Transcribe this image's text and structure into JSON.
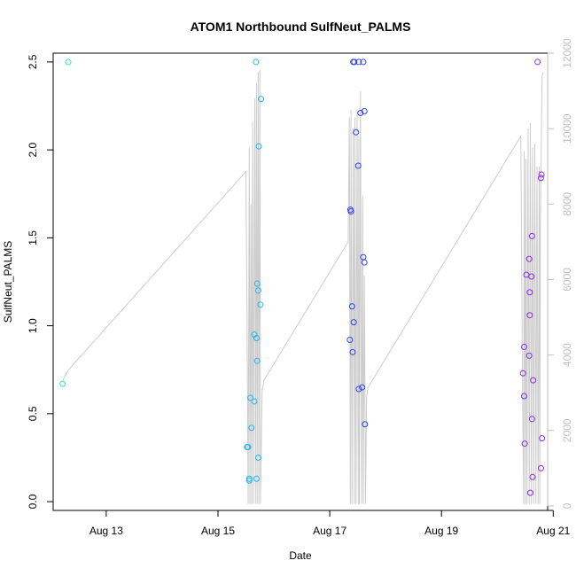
{
  "chart_data": {
    "type": "scatter",
    "title": "ATOM1 Northbound SulfNeut_PALMS",
    "xlabel": "Date",
    "ylabel": "SulfNeut_PALMS",
    "x_unit": "days (August 2016, day-of-month)",
    "xlim": [
      12.05,
      20.9
    ],
    "ylim": [
      -0.05,
      2.55
    ],
    "y2lim": [
      -120,
      12000
    ],
    "x_ticks": [
      {
        "value": 13,
        "label": "Aug 13"
      },
      {
        "value": 15,
        "label": "Aug 15"
      },
      {
        "value": 17,
        "label": "Aug 17"
      },
      {
        "value": 19,
        "label": "Aug 19"
      },
      {
        "value": 21,
        "label": "Aug 21"
      }
    ],
    "y_ticks": [
      {
        "value": 0.0,
        "label": "0.0"
      },
      {
        "value": 0.5,
        "label": "0.5"
      },
      {
        "value": 1.0,
        "label": "1.0"
      },
      {
        "value": 1.5,
        "label": "1.5"
      },
      {
        "value": 2.0,
        "label": "2.0"
      },
      {
        "value": 2.5,
        "label": "2.5"
      }
    ],
    "y2_ticks": [
      {
        "value": 0,
        "label": "0"
      },
      {
        "value": 2000,
        "label": "2000"
      },
      {
        "value": 4000,
        "label": "4000"
      },
      {
        "value": 6000,
        "label": "6000"
      },
      {
        "value": 8000,
        "label": "8000"
      },
      {
        "value": 10000,
        "label": "10000"
      },
      {
        "value": 12000,
        "label": "12000"
      }
    ],
    "points": [
      {
        "x": 12.32,
        "y": 2.5,
        "color": "#2ee8b8"
      },
      {
        "x": 12.22,
        "y": 0.67,
        "color": "#2ee8b8"
      },
      {
        "x": 15.68,
        "y": 2.5,
        "color": "#1fb8f0"
      },
      {
        "x": 15.77,
        "y": 2.29,
        "color": "#1fb8f0"
      },
      {
        "x": 15.73,
        "y": 2.02,
        "color": "#1fb8f0"
      },
      {
        "x": 15.7,
        "y": 1.24,
        "color": "#1fb8f0"
      },
      {
        "x": 15.72,
        "y": 1.2,
        "color": "#1fb8f0"
      },
      {
        "x": 15.76,
        "y": 1.12,
        "color": "#1fb8f0"
      },
      {
        "x": 15.65,
        "y": 0.95,
        "color": "#1fb8f0"
      },
      {
        "x": 15.69,
        "y": 0.93,
        "color": "#1fb8f0"
      },
      {
        "x": 15.7,
        "y": 0.8,
        "color": "#1fb8f0"
      },
      {
        "x": 15.58,
        "y": 0.59,
        "color": "#1fb8f0"
      },
      {
        "x": 15.65,
        "y": 0.57,
        "color": "#1fb8f0"
      },
      {
        "x": 15.6,
        "y": 0.42,
        "color": "#1fb8f0"
      },
      {
        "x": 15.52,
        "y": 0.31,
        "color": "#1fb8f0"
      },
      {
        "x": 15.54,
        "y": 0.31,
        "color": "#1fb8f0"
      },
      {
        "x": 15.72,
        "y": 0.25,
        "color": "#1fb8f0"
      },
      {
        "x": 15.56,
        "y": 0.13,
        "color": "#1fb8f0"
      },
      {
        "x": 15.69,
        "y": 0.13,
        "color": "#1fb8f0"
      },
      {
        "x": 15.56,
        "y": 0.12,
        "color": "#1fb8f0"
      },
      {
        "x": 17.42,
        "y": 2.5,
        "color": "#2d43f0"
      },
      {
        "x": 17.44,
        "y": 2.5,
        "color": "#2d43f0"
      },
      {
        "x": 17.52,
        "y": 2.5,
        "color": "#2d43f0"
      },
      {
        "x": 17.6,
        "y": 2.5,
        "color": "#2d43f0"
      },
      {
        "x": 17.62,
        "y": 2.22,
        "color": "#2d43f0"
      },
      {
        "x": 17.55,
        "y": 2.21,
        "color": "#2d43f0"
      },
      {
        "x": 17.47,
        "y": 2.1,
        "color": "#2d43f0"
      },
      {
        "x": 17.51,
        "y": 1.91,
        "color": "#2d43f0"
      },
      {
        "x": 17.37,
        "y": 1.66,
        "color": "#2d43f0"
      },
      {
        "x": 17.38,
        "y": 1.65,
        "color": "#2d43f0"
      },
      {
        "x": 17.6,
        "y": 1.39,
        "color": "#2d43f0"
      },
      {
        "x": 17.62,
        "y": 1.36,
        "color": "#2d43f0"
      },
      {
        "x": 17.4,
        "y": 1.11,
        "color": "#2d43f0"
      },
      {
        "x": 17.43,
        "y": 1.02,
        "color": "#2d43f0"
      },
      {
        "x": 17.36,
        "y": 0.92,
        "color": "#2d43f0"
      },
      {
        "x": 17.41,
        "y": 0.85,
        "color": "#2d43f0"
      },
      {
        "x": 17.58,
        "y": 0.65,
        "color": "#2d43f0"
      },
      {
        "x": 17.52,
        "y": 0.64,
        "color": "#2d43f0"
      },
      {
        "x": 17.63,
        "y": 0.44,
        "color": "#2d43f0"
      },
      {
        "x": 20.72,
        "y": 2.5,
        "color": "#8a2be2"
      },
      {
        "x": 20.79,
        "y": 1.86,
        "color": "#8a2be2"
      },
      {
        "x": 20.78,
        "y": 1.84,
        "color": "#8a2be2"
      },
      {
        "x": 20.62,
        "y": 1.51,
        "color": "#8a2be2"
      },
      {
        "x": 20.57,
        "y": 1.38,
        "color": "#8a2be2"
      },
      {
        "x": 20.52,
        "y": 1.29,
        "color": "#8a2be2"
      },
      {
        "x": 20.61,
        "y": 1.28,
        "color": "#8a2be2"
      },
      {
        "x": 20.58,
        "y": 1.19,
        "color": "#8a2be2"
      },
      {
        "x": 20.58,
        "y": 1.06,
        "color": "#8a2be2"
      },
      {
        "x": 20.48,
        "y": 0.88,
        "color": "#8a2be2"
      },
      {
        "x": 20.57,
        "y": 0.83,
        "color": "#8a2be2"
      },
      {
        "x": 20.46,
        "y": 0.73,
        "color": "#8a2be2"
      },
      {
        "x": 20.64,
        "y": 0.69,
        "color": "#8a2be2"
      },
      {
        "x": 20.48,
        "y": 0.6,
        "color": "#8a2be2"
      },
      {
        "x": 20.62,
        "y": 0.47,
        "color": "#8a2be2"
      },
      {
        "x": 20.8,
        "y": 0.36,
        "color": "#8a2be2"
      },
      {
        "x": 20.49,
        "y": 0.33,
        "color": "#8a2be2"
      },
      {
        "x": 20.78,
        "y": 0.19,
        "color": "#8a2be2"
      },
      {
        "x": 20.63,
        "y": 0.14,
        "color": "#8a2be2"
      },
      {
        "x": 20.59,
        "y": 0.05,
        "color": "#8a2be2"
      }
    ],
    "altitude_series": {
      "name": "altitude",
      "axis": "right",
      "color": "#cccccc",
      "x": [
        12.22,
        12.26,
        12.3,
        12.35,
        15.5,
        15.52,
        15.54,
        15.56,
        15.57,
        15.59,
        15.6,
        15.62,
        15.63,
        15.66,
        15.67,
        15.69,
        15.7,
        15.72,
        15.73,
        15.75,
        15.76,
        15.79,
        15.81,
        15.82,
        15.83,
        17.33,
        17.35,
        17.37,
        17.38,
        17.4,
        17.42,
        17.44,
        17.45,
        17.47,
        17.49,
        17.51,
        17.52,
        17.53,
        17.55,
        17.57,
        17.59,
        17.6,
        17.62,
        17.64,
        17.66,
        17.67,
        17.68,
        17.69,
        20.42,
        20.45,
        20.47,
        20.48,
        20.5,
        20.51,
        20.53,
        20.55,
        20.57,
        20.59,
        20.61,
        20.63,
        20.65,
        20.67,
        20.69,
        20.71,
        20.73,
        20.75,
        20.76,
        20.77,
        20.8,
        20.82
      ],
      "y": [
        3300,
        3450,
        3550,
        3650,
        8860,
        4900,
        50,
        9500,
        50,
        8000,
        50,
        10200,
        50,
        10800,
        50,
        11200,
        50,
        11500,
        50,
        11550,
        50,
        3050,
        3200,
        3300,
        3350,
        7000,
        10300,
        50,
        10500,
        50,
        10000,
        50,
        10300,
        50,
        10500,
        50,
        9800,
        50,
        11000,
        50,
        8200,
        50,
        6100,
        50,
        2900,
        3000,
        3100,
        3150,
        9800,
        3200,
        50,
        9400,
        50,
        9200,
        50,
        10000,
        50,
        10150,
        50,
        9500,
        50,
        9600,
        50,
        9000,
        50,
        9000,
        50,
        7500,
        11400,
        11500
      ]
    }
  }
}
